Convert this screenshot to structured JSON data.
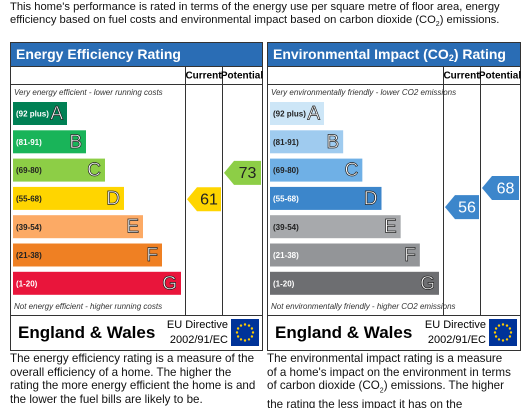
{
  "intro": [
    "This home's performance is rated in terms of the energy use per square metre of floor area, energy efficiency based on fuel costs and environmental impact based on carbon dioxide (CO",
    "2",
    ") emissions."
  ],
  "panels": [
    {
      "title": [
        "Energy Efficiency Rating"
      ],
      "columns": [
        "Current",
        "Potential"
      ],
      "top_note": "Very energy efficient - lower running costs",
      "bands": [
        {
          "range": "(92 plus)",
          "letter": "A",
          "color": "#008054"
        },
        {
          "range": "(81-91)",
          "letter": "B",
          "color": "#19b459"
        },
        {
          "range": "(69-80)",
          "letter": "C",
          "color": "#8dce46"
        },
        {
          "range": "(55-68)",
          "letter": "D",
          "color": "#ffd500"
        },
        {
          "range": "(39-54)",
          "letter": "E",
          "color": "#fcaa65"
        },
        {
          "range": "(21-38)",
          "letter": "F",
          "color": "#ef8023"
        },
        {
          "range": "(1-20)",
          "letter": "G",
          "color": "#e9153b"
        }
      ],
      "bottom_note": "Not energy efficient - higher running costs",
      "current": 61,
      "potential": 73,
      "region": "England & Wales",
      "directive": [
        "EU Directive",
        "2002/91/EC"
      ],
      "description": [
        "The energy efficiency rating is a measure of the overall efficiency of a home. The higher the rating the more energy efficient the home is and the lower the fuel bills are likely to be."
      ]
    },
    {
      "title": [
        "Environmental Impact (CO",
        "2",
        ") Rating"
      ],
      "columns": [
        "Current",
        "Potential"
      ],
      "top_note": "Very environmentally friendly - lower CO2 emissions",
      "bands": [
        {
          "range": "(92 plus)",
          "letter": "A",
          "color": "#cde6f7"
        },
        {
          "range": "(81-91)",
          "letter": "B",
          "color": "#9fcbef"
        },
        {
          "range": "(69-80)",
          "letter": "C",
          "color": "#6fb0e6"
        },
        {
          "range": "(55-68)",
          "letter": "D",
          "color": "#3c86cb"
        },
        {
          "range": "(39-54)",
          "letter": "E",
          "color": "#a7a9ac"
        },
        {
          "range": "(21-38)",
          "letter": "F",
          "color": "#939598"
        },
        {
          "range": "(1-20)",
          "letter": "G",
          "color": "#6d6e71"
        }
      ],
      "bottom_note": "Not environmentally friendly - higher CO2 emissions",
      "current": 56,
      "potential": 68,
      "region": "England & Wales",
      "directive": [
        "EU Directive",
        "2002/91/EC"
      ],
      "description": [
        "The environmental impact rating is a measure of a home's impact on the environment in terms of carbon dioxide (CO",
        "2",
        ") emissions. The higher the rating the less impact it has on the environment."
      ]
    }
  ]
}
